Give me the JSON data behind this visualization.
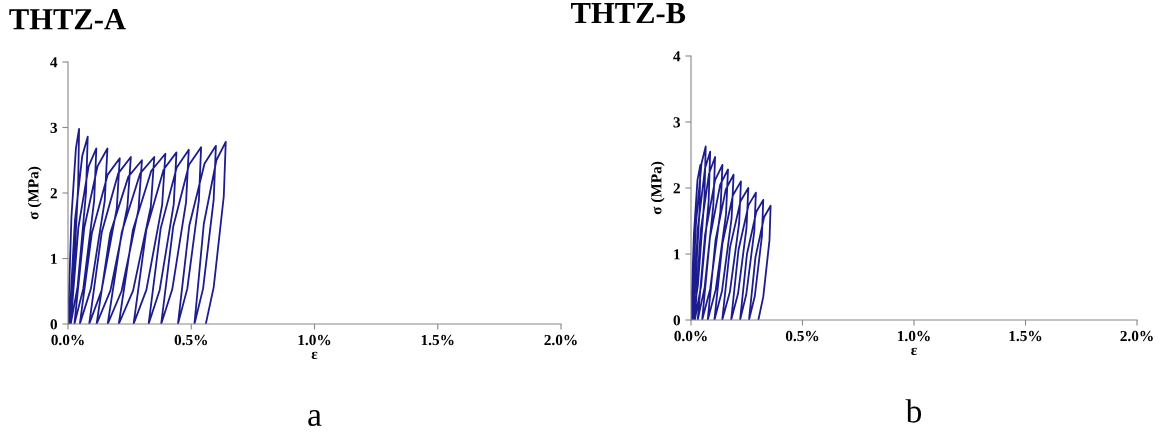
{
  "chart_data": [
    {
      "type": "line",
      "title": "THTZ-A",
      "xlabel": "ε",
      "ylabel": "σ (MPa)",
      "annotations": [
        "a"
      ],
      "xlim": [
        0,
        2
      ],
      "ylim": [
        0,
        4
      ],
      "xticks": [
        {
          "value": 0,
          "label": "0.0%"
        },
        {
          "value": 0.5,
          "label": "0.5%"
        },
        {
          "value": 1,
          "label": "1.0%"
        },
        {
          "value": 1.5,
          "label": "1.5%"
        },
        {
          "value": 2,
          "label": "2.0%"
        }
      ],
      "yticks": [
        0,
        1,
        2,
        3,
        4
      ],
      "grid": false,
      "legend": false,
      "series": [
        {
          "color": "#1c1c8f",
          "x": [
            0,
            0.014,
            0.032,
            0.045,
            0.041,
            0.021,
            0.005,
            0.028,
            0.058,
            0.08,
            0.073,
            0.039,
            0.011,
            0.042,
            0.084,
            0.115,
            0.106,
            0.062,
            0.026,
            0.066,
            0.12,
            0.16,
            0.149,
            0.093,
            0.048,
            0.097,
            0.161,
            0.21,
            0.198,
            0.136,
            0.086,
            0.137,
            0.204,
            0.255,
            0.241,
            0.172,
            0.116,
            0.171,
            0.245,
            0.3,
            0.286,
            0.217,
            0.161,
            0.218,
            0.293,
            0.35,
            0.336,
            0.264,
            0.206,
            0.263,
            0.338,
            0.395,
            0.382,
            0.318,
            0.266,
            0.318,
            0.388,
            0.44,
            0.429,
            0.372,
            0.327,
            0.376,
            0.441,
            0.49,
            0.479,
            0.423,
            0.378,
            0.427,
            0.491,
            0.54,
            0.531,
            0.484,
            0.446,
            0.492,
            0.554,
            0.6,
            0.591,
            0.548,
            0.513,
            0.551,
            0.602,
            0.64,
            0.632,
            0.591,
            0.559
          ],
          "values": [
            0,
            1.64,
            2.68,
            2.98,
            2.09,
            0.6,
            0,
            1.57,
            2.57,
            2.86,
            2.0,
            0.57,
            0,
            1.47,
            2.41,
            2.68,
            1.88,
            0.54,
            0,
            1.47,
            2.41,
            2.68,
            1.88,
            0.54,
            0,
            1.39,
            2.28,
            2.53,
            1.77,
            0.51,
            0,
            1.4,
            2.3,
            2.55,
            1.79,
            0.51,
            0,
            1.38,
            2.25,
            2.5,
            1.75,
            0.5,
            0,
            1.4,
            2.3,
            2.55,
            1.79,
            0.51,
            0,
            1.43,
            2.34,
            2.6,
            1.82,
            0.52,
            0,
            1.44,
            2.36,
            2.62,
            1.83,
            0.52,
            0,
            1.46,
            2.39,
            2.66,
            1.86,
            0.53,
            0,
            1.49,
            2.43,
            2.7,
            1.89,
            0.54,
            0,
            1.5,
            2.45,
            2.72,
            1.9,
            0.54,
            0,
            1.53,
            2.5,
            2.78,
            1.95,
            0.56,
            0
          ]
        }
      ]
    },
    {
      "type": "line",
      "title": "THTZ-B",
      "xlabel": "ε",
      "ylabel": "σ (MPa)",
      "annotations": [
        "b"
      ],
      "xlim": [
        0,
        2
      ],
      "ylim": [
        0,
        4
      ],
      "xticks": [
        {
          "value": 0,
          "label": "0.0%"
        },
        {
          "value": 0.5,
          "label": "0.5%"
        },
        {
          "value": 1,
          "label": "1.0%"
        },
        {
          "value": 1.5,
          "label": "1.5%"
        },
        {
          "value": 2,
          "label": "2.0%"
        }
      ],
      "yticks": [
        0,
        1,
        2,
        3,
        4
      ],
      "grid": false,
      "legend": false,
      "series": [
        {
          "color": "#1c1c8f",
          "x": [
            0,
            0.013,
            0.029,
            0.042,
            0.038,
            0.019,
            0.003,
            0.022,
            0.047,
            0.066,
            0.06,
            0.031,
            0.008,
            0.031,
            0.063,
            0.086,
            0.079,
            0.045,
            0.017,
            0.044,
            0.081,
            0.108,
            0.1,
            0.061,
            0.03,
            0.063,
            0.108,
            0.141,
            0.132,
            0.086,
            0.05,
            0.085,
            0.131,
            0.166,
            0.157,
            0.111,
            0.075,
            0.11,
            0.156,
            0.191,
            0.182,
            0.139,
            0.105,
            0.141,
            0.188,
            0.224,
            0.216,
            0.174,
            0.14,
            0.175,
            0.222,
            0.257,
            0.249,
            0.211,
            0.18,
            0.213,
            0.258,
            0.291,
            0.284,
            0.248,
            0.22,
            0.251,
            0.293,
            0.324,
            0.318,
            0.286,
            0.26,
            0.289,
            0.328,
            0.357,
            0.352,
            0.324,
            0.302
          ],
          "values": [
            0,
            1.29,
            2.12,
            2.35,
            1.65,
            0.47,
            0,
            1.45,
            2.37,
            2.63,
            1.84,
            0.53,
            0,
            1.4,
            2.3,
            2.55,
            1.79,
            0.51,
            0,
            1.36,
            2.22,
            2.47,
            1.73,
            0.49,
            0,
            1.29,
            2.12,
            2.35,
            1.65,
            0.47,
            0,
            1.25,
            2.05,
            2.28,
            1.6,
            0.46,
            0,
            1.21,
            1.98,
            2.2,
            1.54,
            0.44,
            0,
            1.16,
            1.89,
            2.1,
            1.47,
            0.42,
            0,
            1.1,
            1.8,
            2.0,
            1.4,
            0.4,
            0,
            1.06,
            1.74,
            1.93,
            1.35,
            0.39,
            0,
            1.0,
            1.64,
            1.82,
            1.27,
            0.36,
            0,
            0.95,
            1.56,
            1.73,
            1.21,
            0.35,
            0
          ]
        }
      ]
    }
  ]
}
